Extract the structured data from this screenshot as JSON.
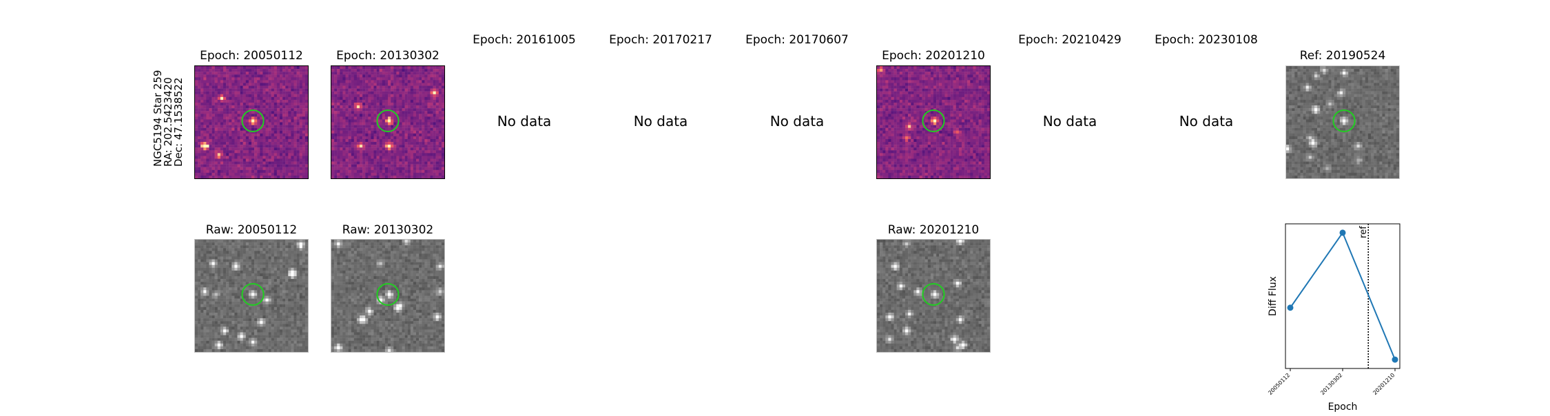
{
  "star_label": {
    "line1": "NGC5194 Star 259",
    "line2": "RA: 202.5423420",
    "line3": "Dec: 47.1538522"
  },
  "top_row": [
    {
      "title": "Epoch: 20050112",
      "has_data": true,
      "kind": "diff"
    },
    {
      "title": "Epoch: 20130302",
      "has_data": true,
      "kind": "diff"
    },
    {
      "title": "Epoch: 20161005",
      "has_data": false,
      "message": "No data"
    },
    {
      "title": "Epoch: 20170217",
      "has_data": false,
      "message": "No data"
    },
    {
      "title": "Epoch: 20170607",
      "has_data": false,
      "message": "No data"
    },
    {
      "title": "Epoch: 20201210",
      "has_data": true,
      "kind": "diff"
    },
    {
      "title": "Epoch: 20210429",
      "has_data": false,
      "message": "No data"
    },
    {
      "title": "Epoch: 20230108",
      "has_data": false,
      "message": "No data"
    },
    {
      "title": "Ref: 20190524",
      "has_data": true,
      "kind": "ref"
    }
  ],
  "bottom_row": [
    {
      "title": "Raw: 20050112",
      "has_data": true,
      "kind": "raw"
    },
    {
      "title": "Raw: 20130302",
      "has_data": true,
      "kind": "raw"
    },
    {
      "title": "Raw: 20201210",
      "has_data": true,
      "kind": "raw"
    }
  ],
  "colors": {
    "circle": "#22cc22",
    "line": "#1f77b4",
    "diff_colormap": "magma",
    "raw_colormap": "gray"
  },
  "chart_data": {
    "type": "line",
    "x": [
      "20050112",
      "20130302",
      "20201210"
    ],
    "series": [
      {
        "values": [
          0.0,
          1.3,
          -0.9
        ]
      }
    ],
    "xlabel": "Epoch",
    "ylabel": "Diff Flux",
    "ref_marker": {
      "label": "ref",
      "x": "20190524",
      "style": "dotted"
    },
    "y_ticks_visible": false
  }
}
